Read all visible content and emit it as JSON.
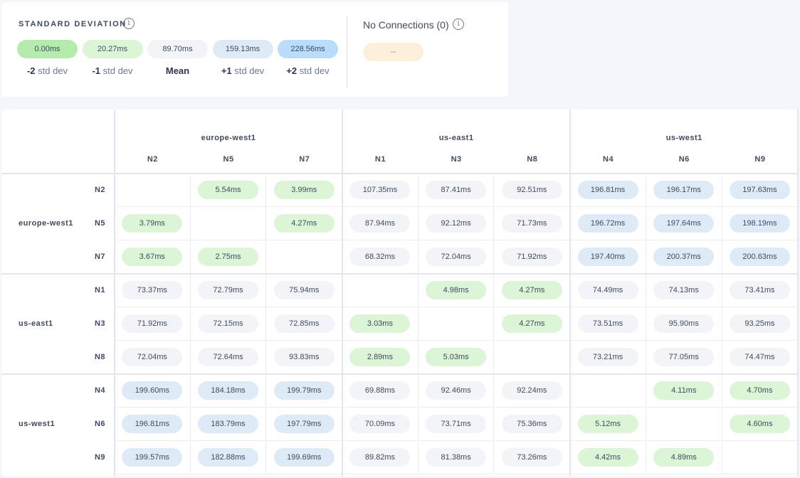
{
  "legend": {
    "title": "STANDARD DEVIATION",
    "items": [
      {
        "value": "0.00ms",
        "sign": "-2",
        "text": "std dev",
        "level": "m2"
      },
      {
        "value": "20.27ms",
        "sign": "-1",
        "text": "std dev",
        "level": "m1"
      },
      {
        "value": "89.70ms",
        "sign": "Mean",
        "text": "",
        "level": "0"
      },
      {
        "value": "159.13ms",
        "sign": "+1",
        "text": "std dev",
        "level": "p1"
      },
      {
        "value": "228.56ms",
        "sign": "+2",
        "text": "std dev",
        "level": "p2"
      }
    ],
    "no_connections": {
      "label": "No Connections (0)",
      "value": "--"
    },
    "info_icon": "i"
  },
  "colors": {
    "m2": "#b3ecab",
    "m1": "#dcf5d7",
    "0": "#f3f4f8",
    "p1": "#deebf7",
    "p2": "#badcfb",
    "none": "#fdf0da"
  },
  "regions": [
    {
      "name": "europe-west1",
      "nodes": [
        "N2",
        "N5",
        "N7"
      ]
    },
    {
      "name": "us-east1",
      "nodes": [
        "N1",
        "N3",
        "N8"
      ]
    },
    {
      "name": "us-west1",
      "nodes": [
        "N4",
        "N6",
        "N9"
      ]
    }
  ],
  "matrix": [
    [
      "",
      "5.54ms",
      "3.99ms",
      "107.35ms",
      "87.41ms",
      "92.51ms",
      "196.81ms",
      "196.17ms",
      "197.63ms"
    ],
    [
      "3.79ms",
      "",
      "4.27ms",
      "87.94ms",
      "92.12ms",
      "71.73ms",
      "196.72ms",
      "197.64ms",
      "198.19ms"
    ],
    [
      "3.67ms",
      "2.75ms",
      "",
      "68.32ms",
      "72.04ms",
      "71.92ms",
      "197.40ms",
      "200.37ms",
      "200.63ms"
    ],
    [
      "73.37ms",
      "72.79ms",
      "75.94ms",
      "",
      "4.98ms",
      "4.27ms",
      "74.49ms",
      "74.13ms",
      "73.41ms"
    ],
    [
      "71.92ms",
      "72.15ms",
      "72.85ms",
      "3.03ms",
      "",
      "4.27ms",
      "73.51ms",
      "95.90ms",
      "93.25ms"
    ],
    [
      "72.04ms",
      "72.64ms",
      "93.83ms",
      "2.89ms",
      "5.03ms",
      "",
      "73.21ms",
      "77.05ms",
      "74.47ms"
    ],
    [
      "199.60ms",
      "184.18ms",
      "199.79ms",
      "69.88ms",
      "92.46ms",
      "92.24ms",
      "",
      "4.11ms",
      "4.70ms"
    ],
    [
      "196.81ms",
      "183.79ms",
      "197.79ms",
      "70.09ms",
      "73.71ms",
      "75.36ms",
      "5.12ms",
      "",
      "4.60ms"
    ],
    [
      "199.57ms",
      "182.88ms",
      "199.69ms",
      "89.82ms",
      "81.38ms",
      "73.26ms",
      "4.42ms",
      "4.89ms",
      ""
    ]
  ]
}
